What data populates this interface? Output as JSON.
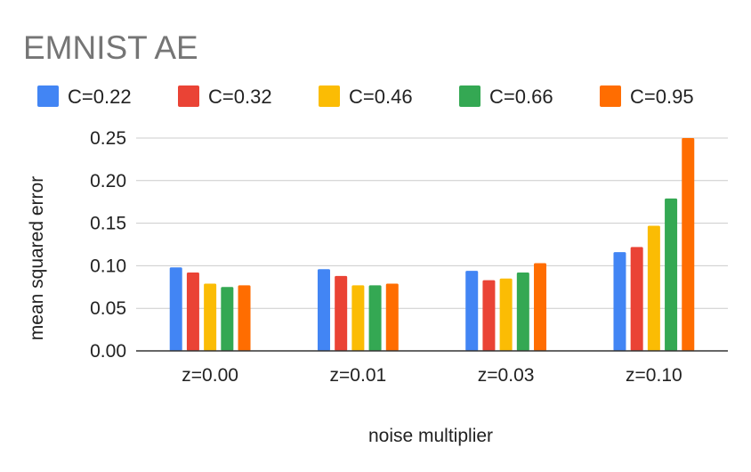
{
  "chart_data": {
    "type": "bar",
    "title": "EMNIST AE",
    "xlabel": "noise multiplier",
    "ylabel": "mean squared error",
    "categories": [
      "z=0.00",
      "z=0.01",
      "z=0.03",
      "z=0.10"
    ],
    "series": [
      {
        "name": "C=0.22",
        "color": "#4285F4",
        "values": [
          0.098,
          0.096,
          0.094,
          0.116
        ]
      },
      {
        "name": "C=0.32",
        "color": "#EA4335",
        "values": [
          0.092,
          0.088,
          0.083,
          0.122
        ]
      },
      {
        "name": "C=0.46",
        "color": "#FBBC04",
        "values": [
          0.079,
          0.077,
          0.085,
          0.147
        ]
      },
      {
        "name": "C=0.66",
        "color": "#34A853",
        "values": [
          0.075,
          0.077,
          0.092,
          0.179
        ]
      },
      {
        "name": "C=0.95",
        "color": "#FF6D01",
        "values": [
          0.077,
          0.079,
          0.103,
          0.25
        ]
      }
    ],
    "ylim": [
      0,
      0.25
    ],
    "yticks": [
      "0.00",
      "0.05",
      "0.10",
      "0.15",
      "0.20",
      "0.25"
    ],
    "grid": true,
    "legend_position": "top"
  }
}
